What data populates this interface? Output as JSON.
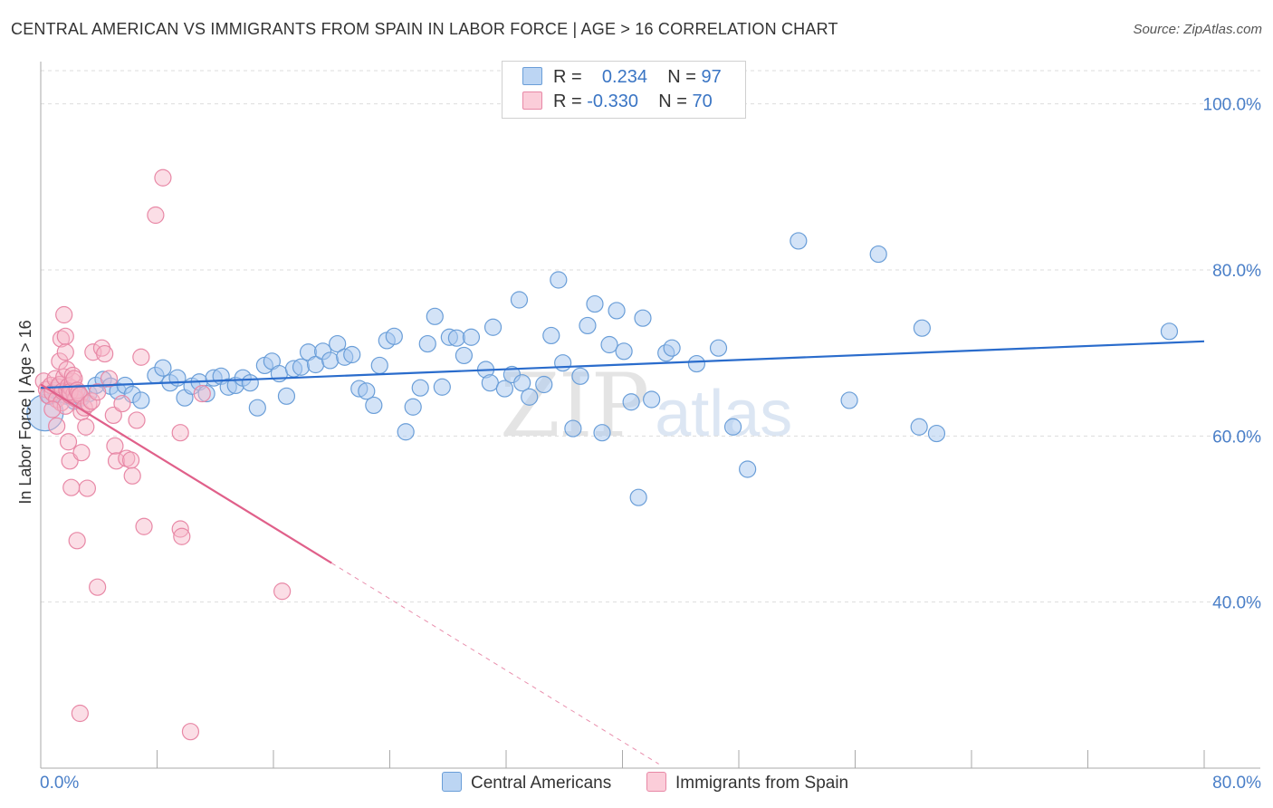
{
  "title": "CENTRAL AMERICAN VS IMMIGRANTS FROM SPAIN IN LABOR FORCE | AGE > 16 CORRELATION CHART",
  "source": "Source: ZipAtlas.com",
  "watermark": {
    "zip": "ZIP",
    "atlas": "atlas"
  },
  "legend": {
    "rows": [
      {
        "r_label": "R =",
        "r_value": "0.234",
        "n_label": "N =",
        "n_value": "97"
      },
      {
        "r_label": "R =",
        "r_value": "-0.330",
        "n_label": "N =",
        "n_value": "70"
      }
    ]
  },
  "colors": {
    "blue_fill": "#a8c8f0",
    "blue_stroke": "#6a9ed8",
    "blue_line": "#2a6ccc",
    "pink_fill": "#f7b6c8",
    "pink_stroke": "#e888a6",
    "pink_line": "#e0608a",
    "grid": "#dddddd",
    "axis_text": "#4a7fc8"
  },
  "chart_data": {
    "type": "scatter",
    "title": "CENTRAL AMERICAN VS IMMIGRANTS FROM SPAIN IN LABOR FORCE | AGE > 16 CORRELATION CHART",
    "xlabel": "",
    "ylabel": "In Labor Force | Age > 16",
    "xlim": [
      0,
      80
    ],
    "ylim": [
      20,
      104
    ],
    "x_tick_labels": [
      "0.0%",
      "80.0%"
    ],
    "y_ticks": [
      40,
      60,
      80,
      100
    ],
    "y_tick_labels": [
      "40.0%",
      "60.0%",
      "80.0%",
      "100.0%"
    ],
    "series": [
      {
        "name": "Central Americans",
        "R": 0.234,
        "N": 97,
        "trend": {
          "x0": 0,
          "y0": 65.8,
          "x1": 80,
          "y1": 71.4
        },
        "points": [
          [
            0.3,
            62.8
          ],
          [
            0.6,
            64.8
          ],
          [
            1,
            65.5
          ],
          [
            1.4,
            65.0
          ],
          [
            1.8,
            64.8
          ],
          [
            2.3,
            64.2
          ],
          [
            2.8,
            64.6
          ],
          [
            3.3,
            65.1
          ],
          [
            3.8,
            66.1
          ],
          [
            4.3,
            66.8
          ],
          [
            4.8,
            66.0
          ],
          [
            5.3,
            65.4
          ],
          [
            5.8,
            66.1
          ],
          [
            6.3,
            65.0
          ],
          [
            6.9,
            64.3
          ],
          [
            7.9,
            67.3
          ],
          [
            8.4,
            68.2
          ],
          [
            8.9,
            66.4
          ],
          [
            9.4,
            67.0
          ],
          [
            9.9,
            64.6
          ],
          [
            10.4,
            66.0
          ],
          [
            10.9,
            66.5
          ],
          [
            11.4,
            65.1
          ],
          [
            11.9,
            67.0
          ],
          [
            12.4,
            67.2
          ],
          [
            12.9,
            65.9
          ],
          [
            13.4,
            66.1
          ],
          [
            13.9,
            67.0
          ],
          [
            14.4,
            66.4
          ],
          [
            14.9,
            63.4
          ],
          [
            15.4,
            68.5
          ],
          [
            15.9,
            69.0
          ],
          [
            16.4,
            67.5
          ],
          [
            16.9,
            64.8
          ],
          [
            17.4,
            68.1
          ],
          [
            17.9,
            68.3
          ],
          [
            18.4,
            70.1
          ],
          [
            18.9,
            68.6
          ],
          [
            19.4,
            70.2
          ],
          [
            19.9,
            69.1
          ],
          [
            20.4,
            71.1
          ],
          [
            20.9,
            69.5
          ],
          [
            21.4,
            69.8
          ],
          [
            21.9,
            65.7
          ],
          [
            22.4,
            65.4
          ],
          [
            22.9,
            63.7
          ],
          [
            23.3,
            68.5
          ],
          [
            23.8,
            71.5
          ],
          [
            24.3,
            72.0
          ],
          [
            25.1,
            60.5
          ],
          [
            25.6,
            63.5
          ],
          [
            26.1,
            65.8
          ],
          [
            26.6,
            71.1
          ],
          [
            27.1,
            74.4
          ],
          [
            27.6,
            65.9
          ],
          [
            28.1,
            71.9
          ],
          [
            28.6,
            71.8
          ],
          [
            29.1,
            69.7
          ],
          [
            29.6,
            71.9
          ],
          [
            30.6,
            68.0
          ],
          [
            30.9,
            66.4
          ],
          [
            31.1,
            73.1
          ],
          [
            31.9,
            65.7
          ],
          [
            32.4,
            67.4
          ],
          [
            32.9,
            76.4
          ],
          [
            33.1,
            66.4
          ],
          [
            33.6,
            64.7
          ],
          [
            34.6,
            66.2
          ],
          [
            35.1,
            72.1
          ],
          [
            35.6,
            78.8
          ],
          [
            35.9,
            68.8
          ],
          [
            36.6,
            60.9
          ],
          [
            37.1,
            67.2
          ],
          [
            37.6,
            73.3
          ],
          [
            38.1,
            75.9
          ],
          [
            38.6,
            60.4
          ],
          [
            39.1,
            71.0
          ],
          [
            39.6,
            75.1
          ],
          [
            40.1,
            70.2
          ],
          [
            40.6,
            64.1
          ],
          [
            41.1,
            52.6
          ],
          [
            41.4,
            74.2
          ],
          [
            42.0,
            64.4
          ],
          [
            43.0,
            70.0
          ],
          [
            43.4,
            70.6
          ],
          [
            45.1,
            68.7
          ],
          [
            46.6,
            70.6
          ],
          [
            47.6,
            61.1
          ],
          [
            48.6,
            56.0
          ],
          [
            52.1,
            83.5
          ],
          [
            55.6,
            64.3
          ],
          [
            57.6,
            81.9
          ],
          [
            60.4,
            61.1
          ],
          [
            60.6,
            73.0
          ],
          [
            61.6,
            60.3
          ],
          [
            77.6,
            72.6
          ]
        ]
      },
      {
        "name": "Immigrants from Spain",
        "R": -0.33,
        "N": 70,
        "trend": {
          "x0": 0,
          "y0": 66.2,
          "x1": 20,
          "y1": 44.7,
          "dash_x1": 42.5,
          "dash_y1": 20.5
        },
        "points": [
          [
            0.2,
            66.6
          ],
          [
            0.4,
            65.6
          ],
          [
            0.5,
            64.9
          ],
          [
            0.7,
            66.1
          ],
          [
            0.8,
            65.2
          ],
          [
            1.0,
            66.9
          ],
          [
            1.1,
            64.4
          ],
          [
            1.2,
            65.9
          ],
          [
            1.3,
            66.2
          ],
          [
            1.4,
            64.0
          ],
          [
            1.5,
            65.4
          ],
          [
            1.6,
            67.1
          ],
          [
            1.7,
            63.6
          ],
          [
            1.8,
            65.5
          ],
          [
            1.9,
            66.0
          ],
          [
            2.0,
            64.9
          ],
          [
            2.1,
            65.8
          ],
          [
            2.2,
            66.6
          ],
          [
            2.3,
            65.1
          ],
          [
            2.4,
            64.5
          ],
          [
            0.8,
            63.2
          ],
          [
            1.1,
            61.2
          ],
          [
            1.3,
            69.0
          ],
          [
            1.4,
            71.7
          ],
          [
            1.6,
            74.6
          ],
          [
            1.7,
            72.0
          ],
          [
            1.7,
            70.1
          ],
          [
            1.8,
            68.0
          ],
          [
            2.0,
            65.3
          ],
          [
            2.2,
            67.3
          ],
          [
            2.3,
            66.9
          ],
          [
            2.5,
            65.5
          ],
          [
            2.6,
            65.2
          ],
          [
            2.7,
            64.9
          ],
          [
            2.8,
            62.9
          ],
          [
            3.0,
            63.4
          ],
          [
            3.1,
            61.1
          ],
          [
            3.3,
            63.9
          ],
          [
            3.5,
            64.2
          ],
          [
            3.6,
            70.1
          ],
          [
            3.9,
            65.3
          ],
          [
            4.2,
            70.6
          ],
          [
            4.4,
            69.9
          ],
          [
            4.7,
            66.9
          ],
          [
            5.0,
            62.5
          ],
          [
            5.1,
            58.8
          ],
          [
            5.2,
            57.0
          ],
          [
            5.6,
            63.9
          ],
          [
            5.9,
            57.3
          ],
          [
            6.2,
            57.1
          ],
          [
            6.3,
            55.2
          ],
          [
            6.6,
            61.9
          ],
          [
            6.9,
            69.5
          ],
          [
            7.1,
            49.1
          ],
          [
            7.9,
            86.6
          ],
          [
            8.4,
            91.1
          ],
          [
            9.6,
            48.8
          ],
          [
            9.6,
            60.4
          ],
          [
            9.7,
            47.9
          ],
          [
            10.3,
            24.4
          ],
          [
            11.1,
            65.1
          ],
          [
            16.6,
            41.3
          ],
          [
            1.9,
            59.3
          ],
          [
            2.0,
            57.0
          ],
          [
            2.1,
            53.8
          ],
          [
            2.5,
            47.4
          ],
          [
            2.8,
            58.0
          ],
          [
            3.2,
            53.7
          ],
          [
            3.9,
            41.8
          ],
          [
            2.7,
            26.6
          ]
        ]
      }
    ]
  },
  "bottom_legend": [
    "Central Americans",
    "Immigrants from Spain"
  ]
}
